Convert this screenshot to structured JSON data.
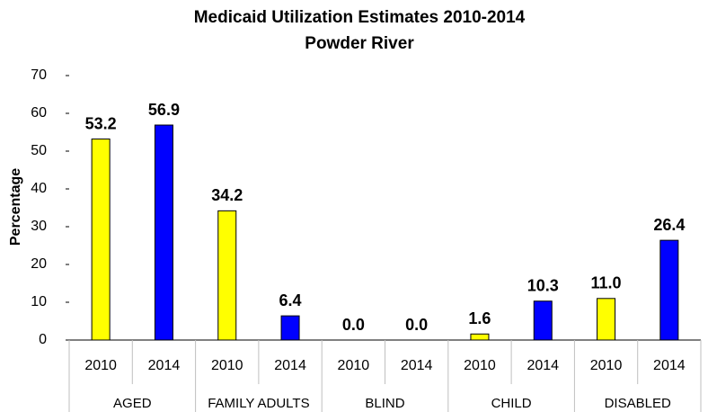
{
  "chart_data": {
    "type": "bar",
    "title": "Medicaid Utilization Estimates 2010-2014",
    "subtitle": "Powder River",
    "y_label": "Percentage",
    "categories": [
      "AGED",
      "FAMILY ADULTS",
      "BLIND",
      "CHILD",
      "DISABLED"
    ],
    "series": [
      {
        "name": "2010",
        "color": "#ffff00",
        "values": [
          53.2,
          34.2,
          0,
          1.6,
          11
        ],
        "value_labels": [
          "53.2",
          "34.2",
          "0.0",
          "1.6",
          "11.0"
        ]
      },
      {
        "name": "2014",
        "color": "#0000ff",
        "values": [
          56.9,
          6.4,
          0,
          10.3,
          26.4
        ],
        "value_labels": [
          "56.9",
          "6.4",
          "0.0",
          "10.3",
          "26.4"
        ]
      }
    ],
    "ylim": [
      0,
      70
    ],
    "yticks": [
      0,
      10,
      20,
      30,
      40,
      50,
      60,
      70
    ],
    "grid": false
  }
}
